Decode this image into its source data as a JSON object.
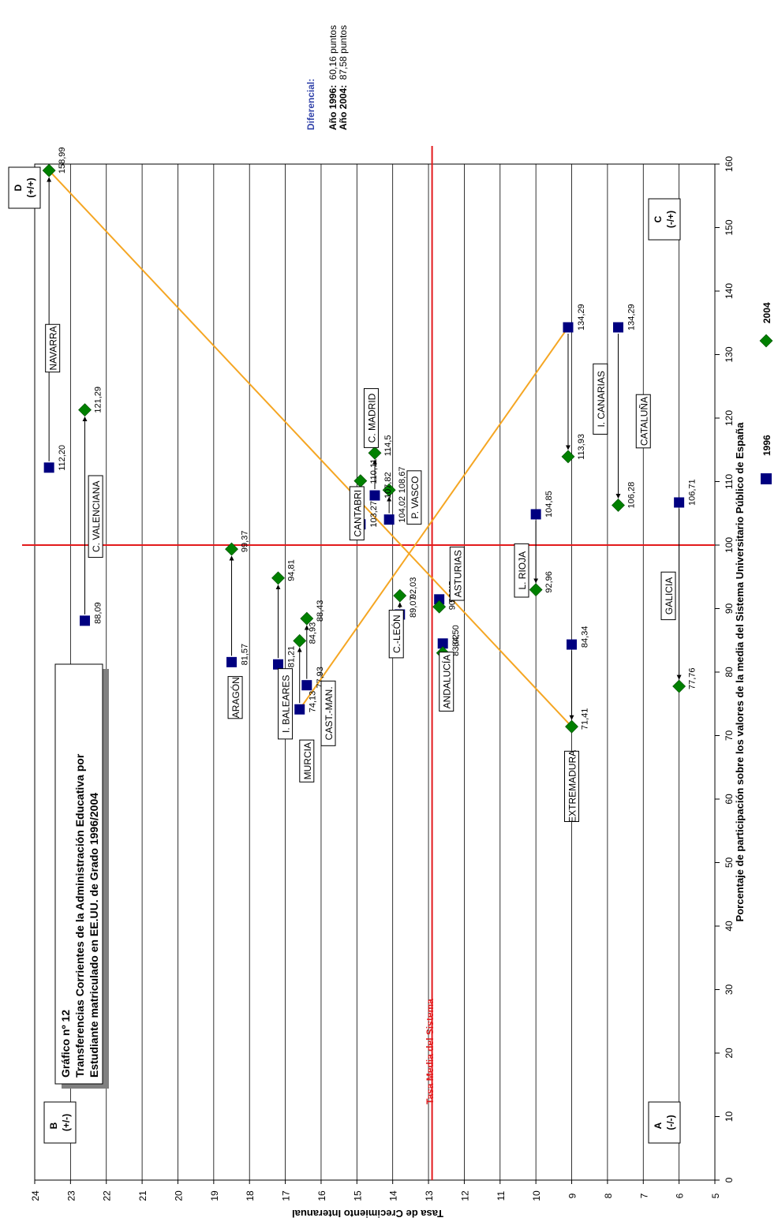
{
  "title_box": {
    "line1": "Gráfico nº 12",
    "line2": "Transferencias Corrientes de la Administración Educativa por",
    "line3": "Estudiante matriculado en EE.UU. de Grado 1996/2004"
  },
  "diferencial": {
    "label": "Diferencial:",
    "line1_bold": "Año 1996:",
    "line1_value": "60,16 puntos",
    "line2_bold": "Año 2004:",
    "line2_value": "87,58 puntos"
  },
  "quadrants": {
    "A": {
      "letter": "A",
      "sign": "(-/-)"
    },
    "B": {
      "letter": "B",
      "sign": "(+/-)"
    },
    "C": {
      "letter": "C",
      "sign": "(-/+)"
    },
    "D": {
      "letter": "D",
      "sign": "(+/+)"
    }
  },
  "mean_line_label": "Tasa Media del Sistema",
  "colors": {
    "series_1996": "#000080",
    "series_2004": "#008000",
    "mean_lines": "#e31a1c",
    "diagonals": "#f5a623"
  },
  "chart_data": {
    "type": "scatter",
    "orientation": "rotated-90-ccw",
    "xlabel": "Porcentaje de participación sobre los valores de la media del Sistema Universitario Público de España",
    "ylabel": "Tasa de Crecimiento Interanual",
    "xlim": [
      0,
      160
    ],
    "ylim": [
      5,
      24
    ],
    "x_ticks": [
      "0",
      "10",
      "20",
      "30",
      "40",
      "50",
      "60",
      "70",
      "80",
      "90",
      "100",
      "110",
      "120",
      "130",
      "140",
      "150",
      "160"
    ],
    "y_ticks": [
      "5",
      "6",
      "7",
      "8",
      "9",
      "10",
      "11",
      "12",
      "13",
      "14",
      "15",
      "16",
      "17",
      "18",
      "19",
      "20",
      "21",
      "22",
      "23",
      "24"
    ],
    "mean_x": 100,
    "mean_y": 12.9,
    "grid": true,
    "legend_position": "bottom",
    "legend": [
      "1996",
      "2004"
    ],
    "regions": [
      {
        "name": "NAVARRA",
        "y": 23.6,
        "x1996": 112.2,
        "x2004": 158.99,
        "label1996": "112,20",
        "label2004": "158,99",
        "name_x": 131,
        "name_y": 23.5
      },
      {
        "name": "C. VALENCIANA",
        "y": 22.6,
        "x1996": 88.09,
        "x2004": 121.29,
        "label1996": "88,09",
        "label2004": "121,29",
        "name_x": 104.5,
        "name_y": 22.3
      },
      {
        "name": "ARAGÓN",
        "y": 18.5,
        "x1996": 81.57,
        "x2004": 99.37,
        "label1996": "81,57",
        "label2004": "99,37",
        "name_x": 76,
        "name_y": 18.4
      },
      {
        "name": "I. BALEARES",
        "y": 17.2,
        "x1996": 81.21,
        "x2004": 94.81,
        "label1996": "81,21",
        "label2004": "94,81",
        "name_x": 75,
        "name_y": 17.0
      },
      {
        "name": "MURCIA",
        "y": 16.6,
        "x1996": 74.13,
        "x2004": 84.93,
        "label1996": "74,13",
        "label2004": "84,93",
        "name_x": 66,
        "name_y": 16.4
      },
      {
        "name": "CAST.-MAN.",
        "y": 16.4,
        "x1996": 77.93,
        "x2004": 88.43,
        "label1996": "77,93",
        "label2004": "88,43",
        "name_x": 73.5,
        "name_y": 15.8
      },
      {
        "name": "CANTABRI",
        "y": 14.9,
        "x1996": 103.27,
        "x2004": 110.11,
        "label1996": "103,27",
        "label2004": "110,11",
        "name_x": 105,
        "name_y": 15.0
      },
      {
        "name": "C. MADRID",
        "y": 14.5,
        "x1996": 107.82,
        "x2004": 114.5,
        "label1996": "107,82",
        "label2004": "114,5",
        "name_x": 120,
        "name_y": 14.6
      },
      {
        "name": "P. VASCO",
        "y": 14.1,
        "x1996": 104.02,
        "x2004": 108.67,
        "label1996": "104,02",
        "label2004": "108,67",
        "name_x": 107.5,
        "name_y": 13.4
      },
      {
        "name": "C.-LEÓN",
        "y": 13.8,
        "x1996": 89.07,
        "x2004": 92.03,
        "label1996": "89,07",
        "label2004": "92,03",
        "name_x": 86,
        "name_y": 13.9
      },
      {
        "name": "ASTURIAS",
        "y": 12.7,
        "x1996": 91.45,
        "x2004": 90.28,
        "label1996": "91,45",
        "label2004": "90,28",
        "name_x": 95.5,
        "name_y": 12.2
      },
      {
        "name": "ANDALUCÍA",
        "y": 12.6,
        "x1996": 84.5,
        "x2004": 83.02,
        "label1996": "84,50",
        "label2004": "83,02",
        "name_x": 78.5,
        "name_y": 12.5
      },
      {
        "name": "L. RIOJA",
        "y": 10.0,
        "x1996": 104.85,
        "x2004": 92.96,
        "label1996": "104,85",
        "label2004": "92,96",
        "name_x": 96,
        "name_y": 10.4
      },
      {
        "name": "EXTREMADURA",
        "y": 9.0,
        "x1996": 84.34,
        "x2004": 71.41,
        "label1996": "84,34",
        "label2004": "71,41",
        "name_x": 62,
        "name_y": 9.0
      },
      {
        "name": "I. CANARIAS",
        "y": 9.1,
        "x1996": 134.29,
        "x2004": 113.93,
        "label1996": "134,29",
        "label2004": "113,93",
        "name_x": 123,
        "name_y": 8.2
      },
      {
        "name": "CATALUÑA",
        "y": 7.7,
        "x1996": 134.29,
        "x2004": 106.28,
        "label1996": "134,29",
        "label2004": "106,28",
        "name_x": 119.5,
        "name_y": 7.0
      },
      {
        "name": "GALICIA",
        "y": 6.0,
        "x1996": 106.71,
        "x2004": 77.76,
        "label1996": "106,71",
        "label2004": "77,76",
        "name_x": 92,
        "name_y": 6.3
      }
    ]
  }
}
